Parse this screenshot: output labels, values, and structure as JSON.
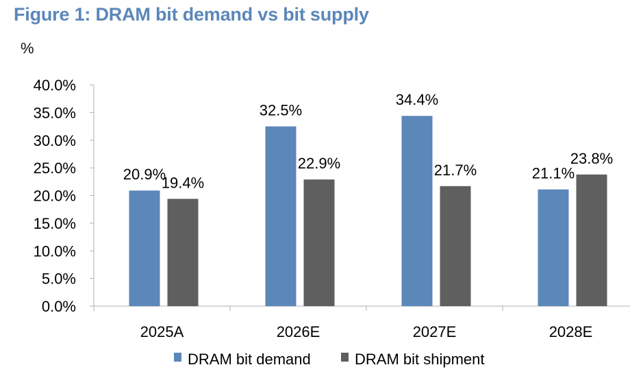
{
  "figure_title": "Figure 1: DRAM bit demand vs bit supply",
  "unit_label": "%",
  "chart_data": {
    "type": "bar",
    "title": "Figure 1: DRAM bit demand vs bit supply",
    "ylabel": "%",
    "categories": [
      "2025A",
      "2026E",
      "2027E",
      "2028E"
    ],
    "series": [
      {
        "name": "DRAM bit demand",
        "color": "#5b87b9",
        "values": [
          20.9,
          32.5,
          34.4,
          21.1
        ],
        "labels": [
          "20.9%",
          "32.5%",
          "34.4%",
          "21.1%"
        ]
      },
      {
        "name": "DRAM bit shipment",
        "color": "#5f5f5f",
        "values": [
          19.4,
          22.9,
          21.7,
          23.8
        ],
        "labels": [
          "19.4%",
          "22.9%",
          "21.7%",
          "23.8%"
        ]
      }
    ],
    "ylim": [
      0,
      40
    ],
    "yticks": [
      0,
      5,
      10,
      15,
      20,
      25,
      30,
      35,
      40
    ],
    "ytick_labels": [
      "0.0%",
      "5.0%",
      "10.0%",
      "15.0%",
      "20.0%",
      "25.0%",
      "30.0%",
      "35.0%",
      "40.0%"
    ],
    "grid": false,
    "legend_position": "bottom"
  }
}
